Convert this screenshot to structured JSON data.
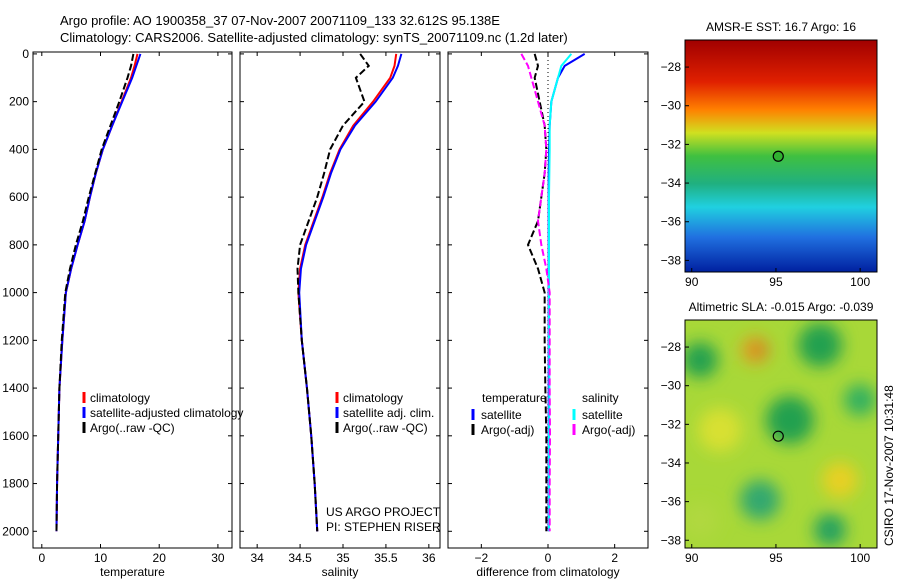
{
  "title": {
    "line1": "Argo profile: AO 1900358_37 07-Nov-2007 20071109_133 32.612S 95.138E",
    "line2": "Climatology: CARS2006. Satellite-adjusted climatology: synTS_20071109.nc (1.2d later)"
  },
  "credit": "CSIRO 17-Nov-2007 10:31:48",
  "project": {
    "line1": "US ARGO PROJECT",
    "line2": "PI: STEPHEN RISER"
  },
  "chart_data": [
    {
      "type": "line",
      "name": "temperature-profile",
      "xlabel": "temperature",
      "xlim": [
        -1.5,
        32.4
      ],
      "ylim": [
        2070,
        -8
      ],
      "xticks": [
        0,
        10,
        20,
        30
      ],
      "yticks": [
        0,
        200,
        400,
        600,
        800,
        1000,
        1200,
        1400,
        1600,
        1800,
        2000
      ],
      "legend": [
        "climatology",
        "satellite-adjusted climatology",
        "Argo(..raw -QC)"
      ],
      "depth": [
        0,
        50,
        100,
        200,
        300,
        400,
        500,
        600,
        700,
        800,
        900,
        1000,
        1200,
        1400,
        1600,
        1800,
        2000
      ],
      "series": [
        {
          "name": "climatology",
          "color": "#ff0000",
          "values": [
            16.3,
            15.8,
            15.2,
            13.6,
            12.0,
            10.4,
            9.2,
            8.2,
            7.3,
            6.1,
            5.0,
            4.1,
            3.5,
            3.0,
            2.8,
            2.6,
            2.5
          ]
        },
        {
          "name": "satellite-adjusted climatology",
          "color": "#0000ff",
          "values": [
            16.8,
            16.1,
            15.4,
            13.7,
            12.0,
            10.4,
            9.2,
            8.2,
            7.3,
            6.1,
            5.0,
            4.1,
            3.5,
            3.0,
            2.8,
            2.6,
            2.5
          ]
        },
        {
          "name": "Argo(..raw -QC)",
          "color": "#000000",
          "dash": true,
          "values": [
            15.6,
            15.2,
            14.6,
            13.2,
            11.7,
            10.2,
            9.1,
            8.0,
            7.0,
            5.8,
            4.8,
            4.0,
            3.4,
            3.0,
            2.8,
            2.6,
            2.5
          ]
        }
      ]
    },
    {
      "type": "line",
      "name": "salinity-profile",
      "xlabel": "salinity",
      "xlim": [
        33.8,
        36.13
      ],
      "ylim": [
        2070,
        -8
      ],
      "xticks": [
        34,
        34.5,
        35,
        35.5,
        36
      ],
      "legend": [
        "climatology",
        "satellite adj. clim.",
        "Argo(..raw -QC)"
      ],
      "depth": [
        0,
        50,
        100,
        200,
        300,
        400,
        500,
        600,
        700,
        800,
        900,
        1000,
        1200,
        1400,
        1600,
        1800,
        2000
      ],
      "series": [
        {
          "name": "climatology",
          "color": "#ff0000",
          "values": [
            35.62,
            35.6,
            35.55,
            35.35,
            35.12,
            34.96,
            34.85,
            34.76,
            34.66,
            34.56,
            34.5,
            34.48,
            34.52,
            34.58,
            34.63,
            34.67,
            34.7
          ]
        },
        {
          "name": "satellite adj. clim.",
          "color": "#0000ff",
          "values": [
            35.68,
            35.64,
            35.58,
            35.38,
            35.14,
            34.97,
            34.86,
            34.77,
            34.67,
            34.57,
            34.51,
            34.49,
            34.52,
            34.58,
            34.63,
            34.67,
            34.7
          ]
        },
        {
          "name": "Argo(..raw -QC)",
          "color": "#000000",
          "dash": true,
          "values": [
            35.2,
            35.3,
            35.15,
            35.25,
            35.0,
            34.85,
            34.78,
            34.7,
            34.6,
            34.5,
            34.47,
            34.48,
            34.52,
            34.58,
            34.63,
            34.67,
            34.7
          ]
        }
      ]
    },
    {
      "type": "line",
      "name": "difference-profile",
      "xlabel": "difference from climatology",
      "xlim": [
        -3,
        3
      ],
      "ylim": [
        2070,
        -8
      ],
      "xticks": [
        -2,
        0,
        2
      ],
      "legend": {
        "temperature_title": "temperature",
        "salinity_title": "salinity",
        "items": [
          "satellite",
          "Argo(-adj)",
          "satellite",
          "Argo(-adj)"
        ]
      },
      "depth": [
        0,
        50,
        100,
        200,
        300,
        400,
        500,
        600,
        700,
        800,
        900,
        1000,
        1200,
        1400,
        1600,
        1800,
        2000
      ],
      "series": [
        {
          "name": "temperature satellite",
          "color": "#0000ff",
          "values": [
            1.1,
            0.5,
            0.3,
            0.1,
            0.05,
            0.03,
            0.02,
            0.02,
            0.02,
            0.02,
            0.02,
            0.02,
            0.02,
            0.02,
            0.02,
            0.02,
            0.02
          ]
        },
        {
          "name": "temperature Argo(-adj)",
          "color": "#000000",
          "dash": true,
          "values": [
            -0.4,
            -0.3,
            -0.4,
            -0.25,
            -0.1,
            -0.05,
            -0.1,
            -0.2,
            -0.3,
            -0.6,
            -0.3,
            -0.1,
            -0.1,
            -0.08,
            -0.05,
            -0.05,
            -0.05
          ]
        },
        {
          "name": "salinity satellite",
          "color": "#00ffff",
          "values": [
            0.7,
            0.4,
            0.3,
            0.1,
            0.05,
            0.05,
            0.04,
            0.03,
            0.03,
            0.03,
            0.03,
            0.03,
            0.03,
            0.04,
            0.03,
            0.03,
            0.03
          ]
        },
        {
          "name": "salinity Argo(-adj)",
          "color": "#ff00ff",
          "dash": true,
          "values": [
            -0.8,
            -0.6,
            -0.5,
            -0.3,
            -0.1,
            -0.05,
            -0.1,
            -0.2,
            -0.3,
            -0.2,
            -0.05,
            0.05,
            0.05,
            0.05,
            0.06,
            0.05,
            0.05
          ]
        }
      ]
    },
    {
      "type": "heatmap",
      "name": "sst-map",
      "title": "AMSR-E SST: 16.7 Argo: 16",
      "xlim": [
        89.6,
        101
      ],
      "ylim": [
        -38.6,
        -26.6
      ],
      "xticks": [
        90,
        95,
        100
      ],
      "yticks": [
        -28,
        -30,
        -32,
        -34,
        -36,
        -38
      ],
      "marker": [
        95.138,
        -32.612
      ]
    },
    {
      "type": "heatmap",
      "name": "sla-map",
      "title": "Altimetric SLA: -0.015 Argo: -0.039",
      "xlim": [
        89.6,
        101
      ],
      "ylim": [
        -38.4,
        -26.6
      ],
      "xticks": [
        90,
        95,
        100
      ],
      "yticks": [
        -28,
        -30,
        -32,
        -34,
        -36,
        -38
      ],
      "marker": [
        95.138,
        -32.612
      ]
    }
  ]
}
